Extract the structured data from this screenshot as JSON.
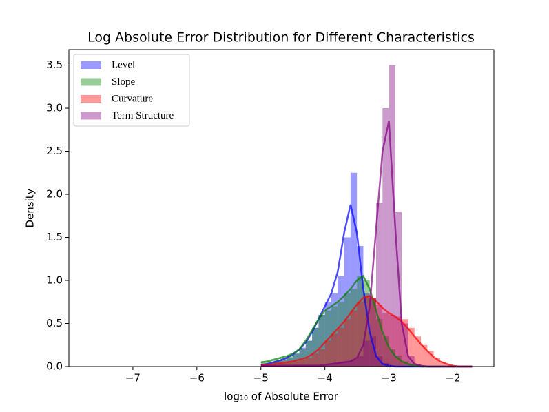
{
  "chart_data": {
    "type": "histogram",
    "title": "Log Absolute Error Distribution for Different Characteristics",
    "xlabel": "log₁₀ of Absolute Error",
    "ylabel": "Density",
    "xlim": [
      -8.0,
      -1.36
    ],
    "ylim": [
      0,
      3.68
    ],
    "xticks": [
      {
        "value": -7,
        "label": "−7"
      },
      {
        "value": -6,
        "label": "−6"
      },
      {
        "value": -5,
        "label": "−5"
      },
      {
        "value": -4,
        "label": "−4"
      },
      {
        "value": -3,
        "label": "−3"
      },
      {
        "value": -2,
        "label": "−2"
      }
    ],
    "yticks": [
      {
        "value": 0,
        "label": "0.0"
      },
      0.5,
      {
        "value": 1,
        "label": "1.0"
      },
      1.5,
      {
        "value": 2,
        "label": "2.0"
      },
      2.5,
      {
        "value": 3,
        "label": "3.0"
      },
      3.5
    ],
    "legend": "upper left",
    "bins": [
      -5.0,
      -4.9,
      -4.8,
      -4.7,
      -4.6,
      -4.5,
      -4.4,
      -4.3,
      -4.2,
      -4.1,
      -4.0,
      -3.9,
      -3.8,
      -3.7,
      -3.6,
      -3.5,
      -3.4,
      -3.3,
      -3.2,
      -3.1,
      -3.0,
      -2.9,
      -2.8,
      -2.7,
      -2.6,
      -2.5,
      -2.4,
      -2.3,
      -2.2,
      -2.1,
      -2.0,
      -1.9,
      -1.8,
      -1.7
    ],
    "kde_x": [
      -5.0,
      -4.9,
      -4.8,
      -4.7,
      -4.6,
      -4.5,
      -4.4,
      -4.3,
      -4.2,
      -4.1,
      -4.0,
      -3.9,
      -3.8,
      -3.7,
      -3.6,
      -3.5,
      -3.4,
      -3.3,
      -3.2,
      -3.1,
      -3.0,
      -2.9,
      -2.8,
      -2.7,
      -2.6,
      -2.5,
      -2.4,
      -2.3,
      -2.2,
      -2.1,
      -2.0,
      -1.9,
      -1.8,
      -1.7
    ],
    "series": [
      {
        "name": "Level",
        "color": "#0000ff",
        "values": [
          0.02,
          0.03,
          0.05,
          0.08,
          0.1,
          0.15,
          0.22,
          0.3,
          0.45,
          0.6,
          0.75,
          0.85,
          1.05,
          1.5,
          2.25,
          1.4,
          0.85,
          0.35,
          0.12,
          0.04,
          0.01,
          0,
          0,
          0,
          0,
          0,
          0,
          0,
          0,
          0,
          0,
          0,
          0
        ],
        "kde_values": [
          0.02,
          0.03,
          0.05,
          0.07,
          0.1,
          0.14,
          0.2,
          0.28,
          0.4,
          0.55,
          0.7,
          0.85,
          1.1,
          1.55,
          1.88,
          1.55,
          0.9,
          0.4,
          0.12,
          0.03,
          0.01,
          0,
          0,
          0,
          0,
          0,
          0,
          0,
          0,
          0,
          0,
          0,
          0,
          0
        ]
      },
      {
        "name": "Slope",
        "color": "#008000",
        "values": [
          0.05,
          0.06,
          0.08,
          0.1,
          0.12,
          0.15,
          0.2,
          0.3,
          0.45,
          0.6,
          0.65,
          0.7,
          0.75,
          0.85,
          0.9,
          1.05,
          1.0,
          0.8,
          0.55,
          0.35,
          0.2,
          0.12,
          0.06,
          0.03,
          0.01,
          0,
          0,
          0,
          0,
          0,
          0,
          0,
          0
        ],
        "kde_values": [
          0.05,
          0.06,
          0.08,
          0.1,
          0.12,
          0.15,
          0.2,
          0.3,
          0.42,
          0.55,
          0.65,
          0.7,
          0.75,
          0.82,
          0.9,
          1.0,
          1.05,
          0.9,
          0.65,
          0.4,
          0.22,
          0.12,
          0.06,
          0.03,
          0.01,
          0,
          0,
          0,
          0,
          0,
          0,
          0,
          0,
          0
        ]
      },
      {
        "name": "Curvature",
        "color": "#ff0000",
        "values": [
          0.02,
          0.02,
          0.03,
          0.04,
          0.05,
          0.06,
          0.08,
          0.1,
          0.15,
          0.2,
          0.3,
          0.38,
          0.45,
          0.55,
          0.65,
          0.75,
          0.82,
          0.8,
          0.72,
          0.62,
          0.6,
          0.58,
          0.55,
          0.45,
          0.35,
          0.25,
          0.18,
          0.1,
          0.05,
          0.02,
          0.01,
          0,
          0
        ],
        "kde_values": [
          0.02,
          0.02,
          0.03,
          0.04,
          0.05,
          0.06,
          0.08,
          0.1,
          0.14,
          0.2,
          0.28,
          0.36,
          0.44,
          0.52,
          0.62,
          0.72,
          0.8,
          0.82,
          0.76,
          0.68,
          0.62,
          0.58,
          0.52,
          0.44,
          0.35,
          0.26,
          0.18,
          0.11,
          0.06,
          0.03,
          0.01,
          0,
          0,
          0
        ]
      },
      {
        "name": "Term Structure",
        "color": "#800080",
        "values": [
          0.01,
          0.01,
          0.01,
          0.01,
          0.01,
          0.02,
          0.02,
          0.02,
          0.02,
          0.02,
          0.03,
          0.04,
          0.05,
          0.06,
          0.08,
          0.12,
          0.3,
          0.8,
          1.9,
          3.0,
          3.5,
          1.8,
          0.5,
          0.12,
          0.03,
          0.01,
          0,
          0,
          0,
          0,
          0,
          0,
          0
        ],
        "kde_values": [
          0.01,
          0.01,
          0.01,
          0.01,
          0.01,
          0.01,
          0.01,
          0.01,
          0.01,
          0.01,
          0.02,
          0.03,
          0.04,
          0.05,
          0.06,
          0.1,
          0.25,
          0.7,
          1.6,
          2.5,
          2.85,
          1.6,
          0.5,
          0.12,
          0.03,
          0.01,
          0,
          0,
          0,
          0,
          0,
          0,
          0,
          0
        ]
      }
    ]
  }
}
